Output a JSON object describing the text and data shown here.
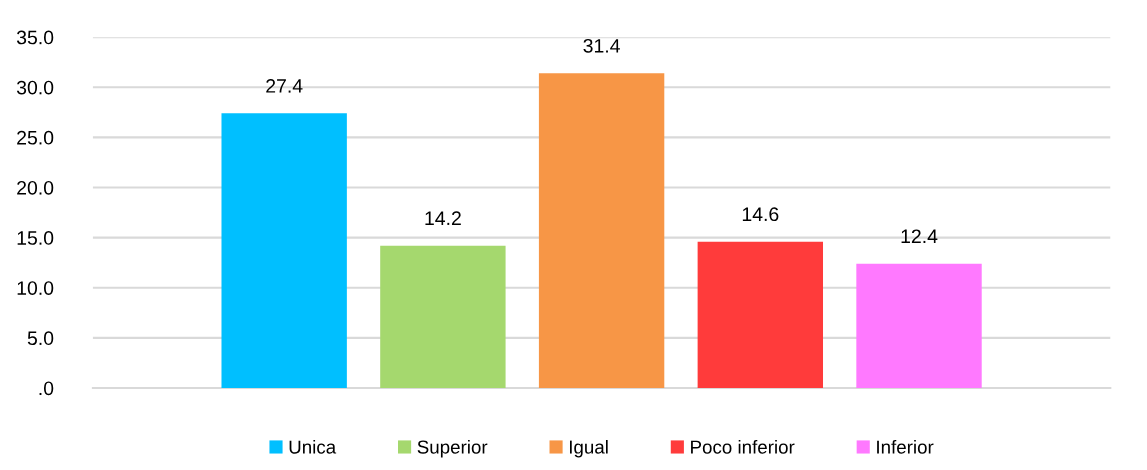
{
  "chart_data": {
    "type": "bar",
    "categories": [
      null
    ],
    "series": [
      {
        "name": "Unica",
        "color": "#00bfff",
        "values": [
          27.4
        ]
      },
      {
        "name": "Superior",
        "color": "#a5d86e",
        "values": [
          14.2
        ]
      },
      {
        "name": "Igual",
        "color": "#f79646",
        "values": [
          31.4
        ]
      },
      {
        "name": "Poco inferior",
        "color": "#ff3b3b",
        "values": [
          14.6
        ]
      },
      {
        "name": "Inferior",
        "color": "#ff79ff",
        "values": [
          12.4
        ]
      }
    ],
    "ylim": [
      0,
      35
    ],
    "yticks": [
      {
        "value": 0,
        "label": ".0"
      },
      {
        "value": 5,
        "label": "5.0"
      },
      {
        "value": 10,
        "label": "10.0"
      },
      {
        "value": 15,
        "label": "15.0"
      },
      {
        "value": 20,
        "label": "20.0"
      },
      {
        "value": 25,
        "label": "25.0"
      },
      {
        "value": 30,
        "label": "30.0"
      },
      {
        "value": 35,
        "label": "35.0"
      }
    ],
    "grid": "y",
    "legend": "bottom",
    "data_labels": true
  }
}
